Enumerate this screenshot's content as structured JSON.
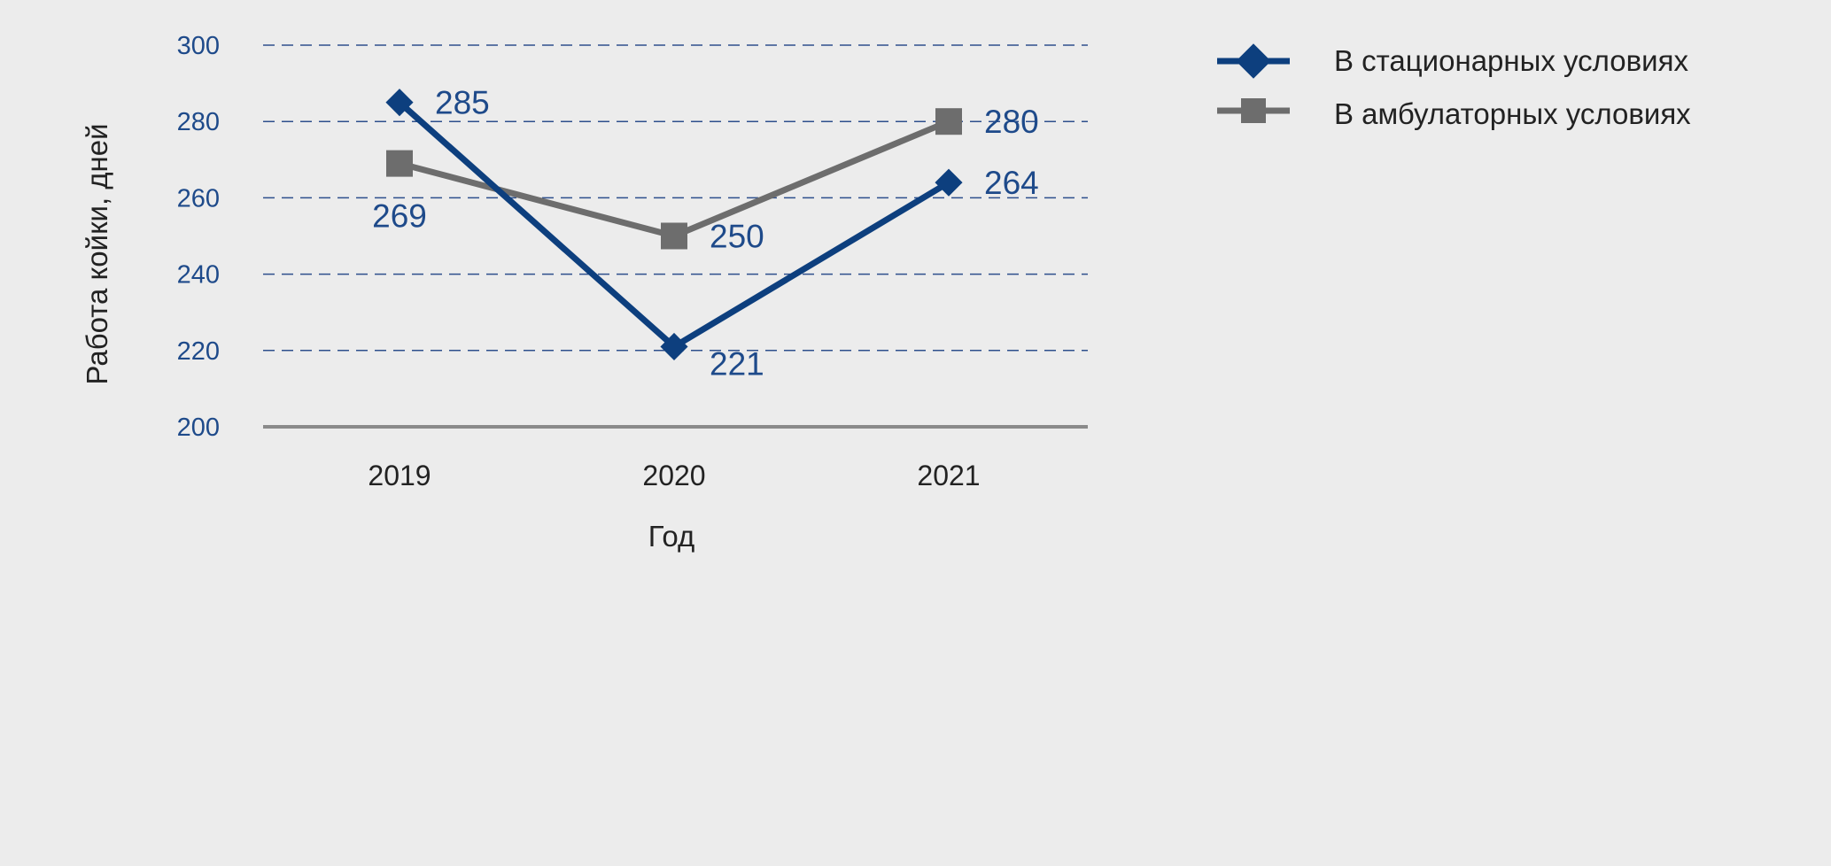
{
  "colors": {
    "background": "#ececec",
    "series_blue": "#0d3f7e",
    "series_gray": "#6d6d6d",
    "gridline": "#2e4f8c",
    "baseline": "#8a8a8a",
    "tick_text": "#1e4a8a",
    "label_text": "#1e4a8a"
  },
  "chart_data": {
    "type": "line",
    "title": "",
    "xlabel": "Год",
    "ylabel": "Работа койки, дней",
    "categories": [
      "2019",
      "2020",
      "2021"
    ],
    "ylim": [
      200,
      300
    ],
    "yticks": [
      200,
      220,
      240,
      260,
      280,
      300
    ],
    "grid": "dashed horizontal",
    "legend_position": "top-right",
    "series": [
      {
        "name": "В стационарных условиях",
        "values": [
          285,
          221,
          264
        ],
        "marker": "diamond",
        "color": "#0d3f7e"
      },
      {
        "name": "В амбулаторных условиях",
        "values": [
          269,
          250,
          280
        ],
        "marker": "square",
        "color": "#6d6d6d"
      }
    ]
  }
}
